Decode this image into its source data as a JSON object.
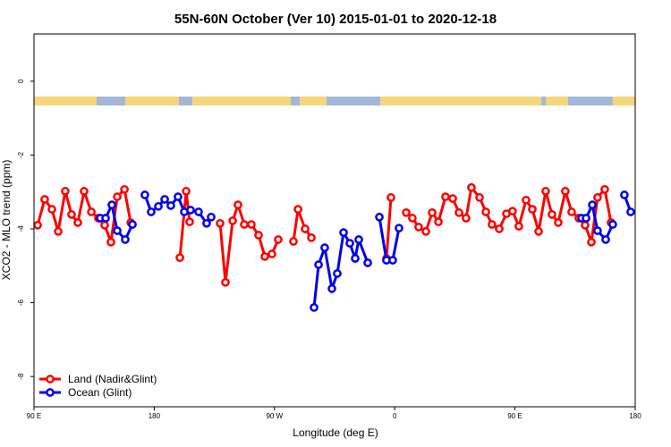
{
  "chart_data": {
    "type": "line",
    "title": "55N-60N October (Ver 10)   2015-01-01 to 2020-12-18",
    "x_label": "Longitude (deg E)",
    "y_label": "XCO2 - MLO trend (ppm)",
    "xlim": [
      90,
      540
    ],
    "ylim": [
      -8.82,
      1.28
    ],
    "xticks": [
      {
        "value": 90,
        "label": "90 E"
      },
      180,
      {
        "value": 270,
        "label": "90 W"
      },
      {
        "value": 360,
        "label": "0"
      },
      {
        "value": 450,
        "label": "90 E"
      },
      {
        "value": 540,
        "label": "180"
      }
    ],
    "yticks": [
      0,
      -2,
      -4,
      -6,
      -8
    ],
    "legend_position": "bottomleft",
    "series": [
      {
        "name": "Land (Nadir&Glint)",
        "color": "#ff0000",
        "x": [
          92.7,
          98.0,
          103.4,
          108.1,
          113.4,
          118.1,
          122.8,
          127.5,
          132.9,
          138.2,
          142.9,
          147.6,
          152.3,
          157.7,
          162.4,
          null,
          199.2,
          203.9,
          206.5,
          null,
          229.3,
          233.3,
          238.7,
          242.7,
          247.4,
          252.7,
          258.1,
          262.8,
          268.1,
          272.8,
          null,
          284.2,
          287.6,
          292.9,
          297.6,
          null,
          353.8,
          357.2,
          null,
          368.6,
          373.2,
          377.9,
          383.3,
          388.0,
          392.7,
          398.0,
          403.4,
          408.1,
          413.4,
          417.4,
          423.5,
          428.2,
          432.8,
          438.2,
          443.6,
          448.2,
          452.9,
          458.3,
          463.0,
          467.7,
          473.0,
          477.7,
          482.4,
          487.7,
          492.4,
          497.8,
          502.5,
          507.2,
          511.8,
          517.2,
          521.9
        ],
        "values": [
          -3.9,
          -3.2,
          -3.47,
          -4.07,
          -2.98,
          -3.61,
          -3.83,
          -2.98,
          -3.54,
          -3.71,
          -3.9,
          -4.36,
          -3.13,
          -2.93,
          -3.83,
          null,
          -4.78,
          -2.98,
          -3.81,
          null,
          -3.85,
          -5.45,
          -3.78,
          -3.35,
          -3.88,
          -3.88,
          -4.17,
          -4.75,
          -4.68,
          -4.29,
          null,
          -4.34,
          -3.47,
          -4.0,
          -4.24,
          null,
          -4.8,
          -3.15,
          null,
          -3.56,
          -3.71,
          -3.95,
          -4.07,
          -3.56,
          -3.81,
          -3.13,
          -3.18,
          -3.56,
          -3.71,
          -2.88,
          -3.15,
          -3.54,
          -3.88,
          -4.0,
          -3.59,
          -3.52,
          -3.93,
          -3.22,
          -3.47,
          -4.07,
          -2.98,
          -3.61,
          -3.83,
          -2.98,
          -3.54,
          -3.71,
          -3.9,
          -4.36,
          -3.15,
          -2.93,
          -3.83
        ]
      },
      {
        "name": "Ocean (Glint)",
        "color": "#0000ee",
        "x": [
          139.6,
          143.6,
          148.3,
          152.3,
          158.3,
          163.7,
          null,
          173.0,
          177.7,
          183.1,
          187.8,
          192.4,
          197.8,
          202.5,
          207.2,
          213.2,
          219.2,
          222.6,
          null,
          299.6,
          303.0,
          307.6,
          313.0,
          317.0,
          321.7,
          326.4,
          330.4,
          333.1,
          339.8,
          null,
          348.5,
          353.8,
          358.5,
          363.2,
          null,
          499.8,
          503.2,
          507.9,
          511.8,
          517.9,
          523.2,
          null,
          531.9,
          536.6
        ],
        "values": [
          -3.71,
          -3.71,
          -3.35,
          -4.05,
          -4.29,
          -3.88,
          null,
          -3.08,
          -3.54,
          -3.39,
          -3.2,
          -3.37,
          -3.13,
          -3.54,
          -3.49,
          -3.54,
          -3.85,
          -3.68,
          null,
          -6.13,
          -4.97,
          -4.51,
          -5.62,
          -5.21,
          -4.1,
          -4.39,
          -4.8,
          -4.29,
          -4.92,
          null,
          -3.68,
          -4.85,
          -4.85,
          -3.98,
          null,
          -3.71,
          -3.71,
          -3.35,
          -4.05,
          -4.29,
          -3.88,
          null,
          -3.08,
          -3.54
        ]
      }
    ]
  }
}
